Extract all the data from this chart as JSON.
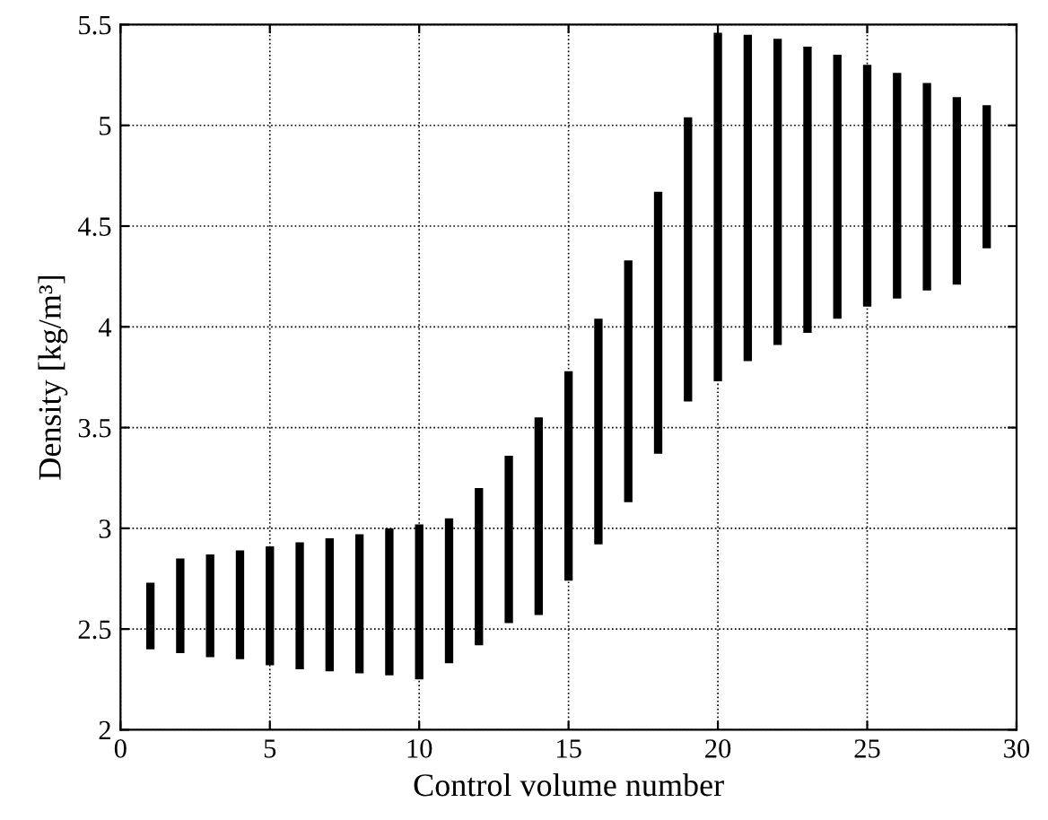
{
  "chart_data": {
    "type": "bar",
    "xlabel": "Control volume number",
    "ylabel": "Density [kg/m³]",
    "x": [
      1,
      2,
      3,
      4,
      5,
      6,
      7,
      8,
      9,
      10,
      11,
      12,
      13,
      14,
      15,
      16,
      17,
      18,
      19,
      20,
      21,
      22,
      23,
      24,
      25,
      26,
      27,
      28,
      29
    ],
    "base": [
      2.4,
      2.38,
      2.36,
      2.35,
      2.32,
      2.3,
      2.29,
      2.28,
      2.27,
      2.25,
      2.33,
      2.42,
      2.53,
      2.57,
      2.74,
      2.92,
      3.13,
      3.37,
      3.63,
      3.73,
      3.83,
      3.91,
      3.97,
      4.04,
      4.1,
      4.14,
      4.18,
      4.21,
      4.39
    ],
    "values": [
      0.33,
      0.47,
      0.51,
      0.54,
      0.59,
      0.63,
      0.66,
      0.69,
      0.73,
      0.77,
      0.72,
      0.78,
      0.83,
      0.98,
      1.04,
      1.12,
      1.2,
      1.3,
      1.41,
      1.73,
      1.62,
      1.52,
      1.42,
      1.31,
      1.2,
      1.12,
      1.03,
      0.93,
      0.71
    ],
    "color": "#000000",
    "xlim": [
      0,
      30
    ],
    "xticks": [
      0,
      5,
      10,
      15,
      20,
      25,
      30
    ],
    "ylim": [
      2,
      5.5
    ],
    "yticks": [
      2,
      2.5,
      3,
      3.5,
      4,
      4.5,
      5,
      5.5
    ],
    "grid": true,
    "line_style": "dotted"
  }
}
